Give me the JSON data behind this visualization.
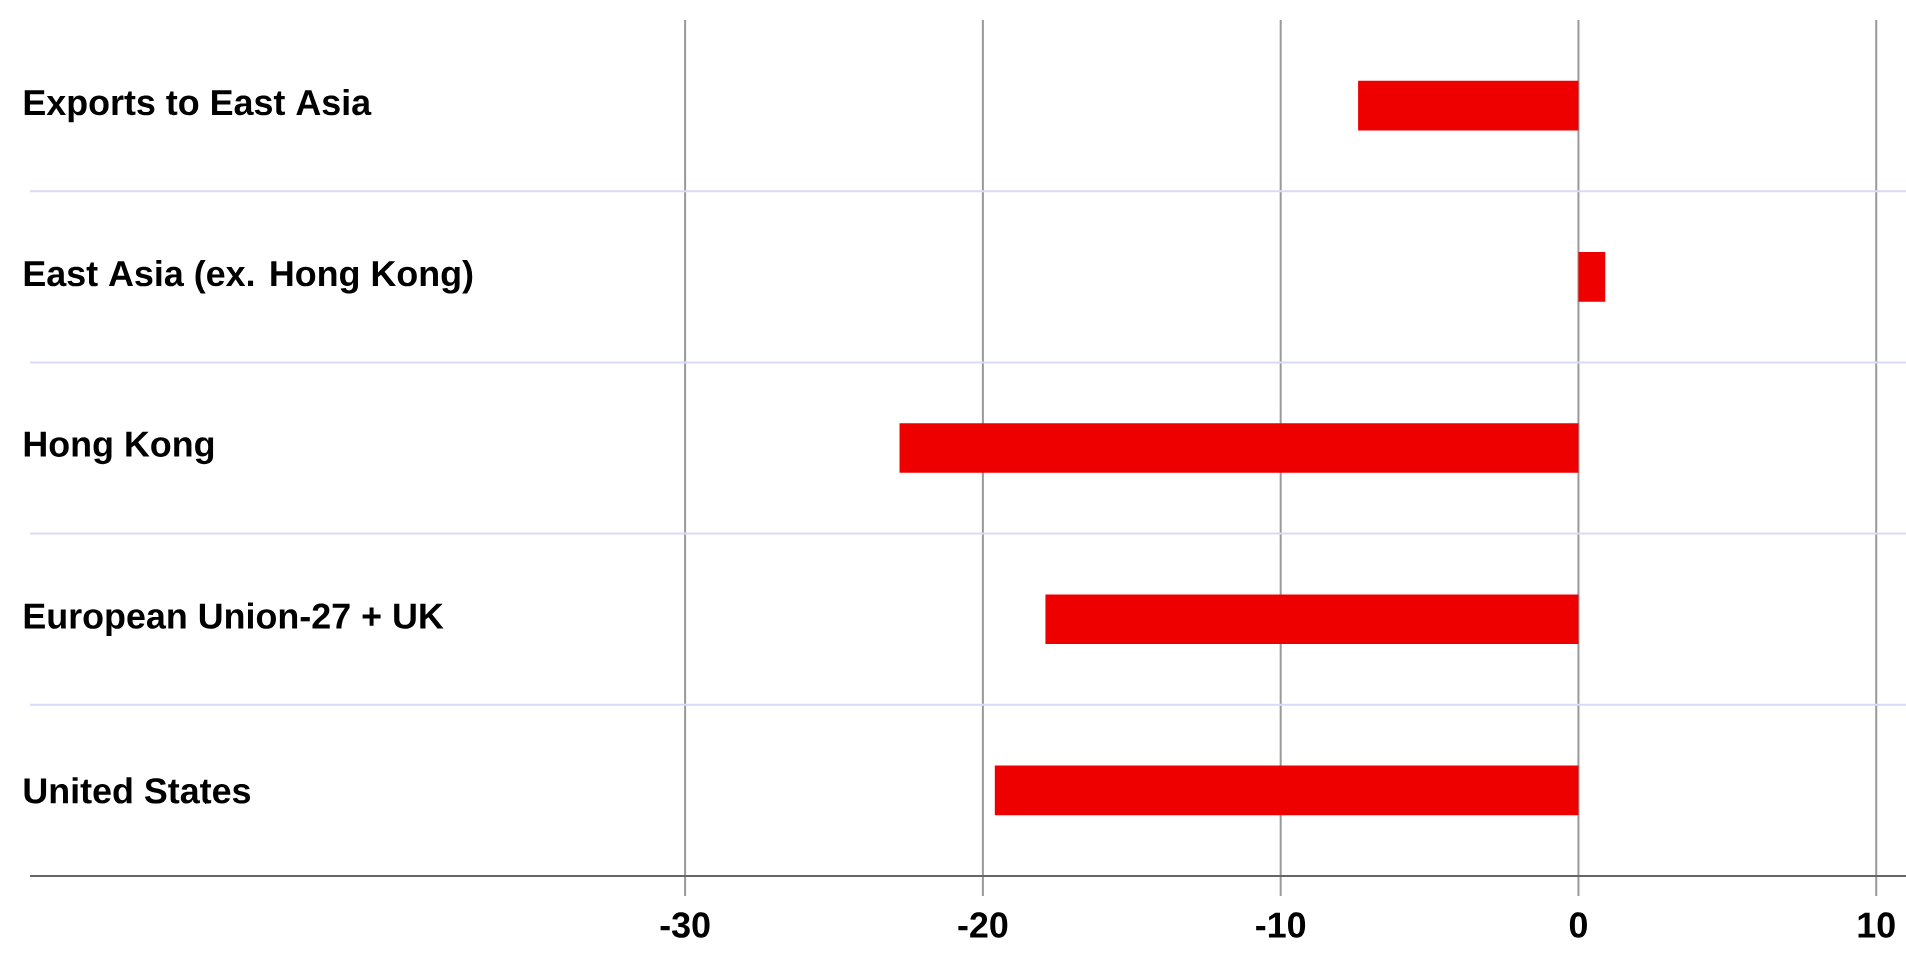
{
  "chart_data": {
    "type": "bar",
    "orientation": "horizontal",
    "categories": [
      "Exports to East Asia",
      "East Asia (ex. Hong Kong)",
      "Hong Kong",
      "European Union-27 + UK",
      "United States"
    ],
    "values": [
      -7.4,
      0.9,
      -22.8,
      -17.9,
      -19.6
    ],
    "color": "#ee0000",
    "xlim": [
      -52,
      11
    ],
    "xticks": [
      -30,
      -20,
      -10,
      0,
      10
    ],
    "grid": "x"
  }
}
